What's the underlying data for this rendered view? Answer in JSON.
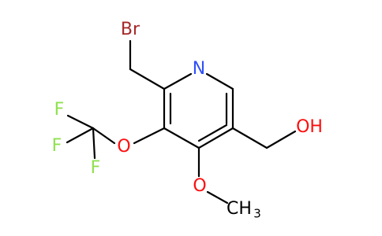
{
  "atoms": [
    {
      "label": "Br"
    },
    {
      "label": "N"
    },
    {
      "label": "OH"
    },
    {
      "label": "O"
    },
    {
      "label": "O"
    },
    {
      "label": "CH",
      "subscript": "3"
    },
    {
      "label": "F"
    },
    {
      "label": "F"
    },
    {
      "label": "F"
    }
  ]
}
